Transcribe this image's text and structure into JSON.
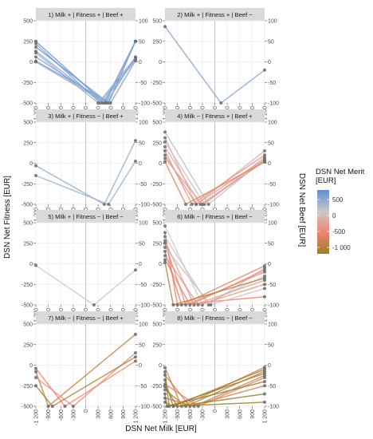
{
  "chart_data": {
    "type": "line",
    "layout": "faceted parallel-coordinates plot, 4 rows x 2 columns",
    "xlabel": "DSN Net Milk [EUR]",
    "ylabel_left": "DSN Net Fitness [EUR]",
    "ylabel_right": "DSN Net Beef [EUR]",
    "axes": {
      "milk": {
        "ticks": [
          "-1 200",
          "-900",
          "-600",
          "-300",
          "0",
          "300",
          "600",
          "900",
          "1 200"
        ],
        "range": [
          -1200,
          1200
        ]
      },
      "fitness": {
        "ticks": [
          "500",
          "250",
          "0",
          "-250",
          "-500"
        ],
        "range": [
          -500,
          500
        ]
      },
      "beef": {
        "ticks": [
          "100",
          "50",
          "0",
          "-50",
          "-100"
        ],
        "range": [
          -100,
          100
        ]
      }
    },
    "grid": true,
    "color_scale": {
      "variable": "DSN Net Merit [EUR]",
      "title": "DSN Net Merit\n[EUR]",
      "labels": [
        "500",
        "0",
        "-500",
        "-1 000"
      ],
      "values": [
        500,
        0,
        -500,
        -1000
      ],
      "range": [
        -1200,
        800
      ],
      "colors": [
        "#5f8ed1",
        "#c9c9c9",
        "#f0836e",
        "#9a7d2a"
      ],
      "legend_position": "right"
    },
    "panels": [
      {
        "title": "1) Milk + | Fitness + | Beef +",
        "animals": [
          {
            "fitness": 250,
            "milk": 450,
            "beef": 50
          },
          {
            "fitness": 220,
            "milk": 350,
            "beef": 10
          },
          {
            "fitness": 180,
            "milk": 550,
            "beef": 50
          },
          {
            "fitness": 130,
            "milk": 400,
            "beef": 5
          },
          {
            "fitness": 110,
            "milk": 300,
            "beef": 10
          },
          {
            "fitness": 60,
            "milk": 500,
            "beef": 12
          },
          {
            "fitness": 10,
            "milk": 600,
            "beef": 3
          },
          {
            "fitness": 0,
            "milk": 480,
            "beef": 50
          }
        ]
      },
      {
        "title": "2) Milk + | Fitness + | Beef −",
        "animals": [
          {
            "fitness": 430,
            "milk": 150,
            "beef": -20
          }
        ]
      },
      {
        "title": "3) Milk + | Fitness − | Beef +",
        "animals": [
          {
            "fitness": -30,
            "milk": 450,
            "beef": 55
          },
          {
            "fitness": -150,
            "milk": 550,
            "beef": 5
          }
        ]
      },
      {
        "title": "4) Milk − | Fitness + | Beef +",
        "animals": [
          {
            "fitness": 380,
            "milk": -150,
            "beef": 10
          },
          {
            "fitness": 310,
            "milk": -450,
            "beef": 30
          },
          {
            "fitness": 260,
            "milk": -250,
            "beef": 15
          },
          {
            "fitness": 200,
            "milk": -350,
            "beef": 5
          },
          {
            "fitness": 150,
            "milk": -550,
            "beef": 20
          },
          {
            "fitness": 100,
            "milk": -450,
            "beef": 10
          },
          {
            "fitness": 60,
            "milk": -300,
            "beef": 5
          },
          {
            "fitness": 20,
            "milk": -700,
            "beef": 3
          }
        ]
      },
      {
        "title": "5) Milk + | Fitness − | Beef −",
        "animals": [
          {
            "fitness": -20,
            "milk": 200,
            "beef": -15
          }
        ]
      },
      {
        "title": "6) Milk − | Fitness + | Beef −",
        "animals": [
          {
            "fitness": 460,
            "milk": -300,
            "beef": -30
          },
          {
            "fitness": 380,
            "milk": -900,
            "beef": -80
          },
          {
            "fitness": 330,
            "milk": -150,
            "beef": -10
          },
          {
            "fitness": 280,
            "milk": -500,
            "beef": -40
          },
          {
            "fitness": 250,
            "milk": -700,
            "beef": -20
          },
          {
            "fitness": 200,
            "milk": -100,
            "beef": -60
          },
          {
            "fitness": 150,
            "milk": -800,
            "beef": -5
          },
          {
            "fitness": 100,
            "milk": -400,
            "beef": -50
          },
          {
            "fitness": 50,
            "milk": -600,
            "beef": -15
          },
          {
            "fitness": 20,
            "milk": -1000,
            "beef": -35
          }
        ]
      },
      {
        "title": "7) Milk − | Fitness − | Beef +",
        "animals": [
          {
            "fitness": -40,
            "milk": -500,
            "beef": 10
          },
          {
            "fitness": -80,
            "milk": -900,
            "beef": 75
          },
          {
            "fitness": -150,
            "milk": -300,
            "beef": 30
          },
          {
            "fitness": -250,
            "milk": -800,
            "beef": 20
          }
        ]
      },
      {
        "title": "8) Milk − | Fitness − | Beef −",
        "animals": [
          {
            "fitness": -30,
            "milk": -800,
            "beef": -5
          },
          {
            "fitness": -80,
            "milk": -1100,
            "beef": -20
          },
          {
            "fitness": -120,
            "milk": -600,
            "beef": -50
          },
          {
            "fitness": -180,
            "milk": -1000,
            "beef": -10
          },
          {
            "fitness": -230,
            "milk": -400,
            "beef": -30
          },
          {
            "fitness": -260,
            "milk": -900,
            "beef": -70
          },
          {
            "fitness": -300,
            "milk": -700,
            "beef": -15
          },
          {
            "fitness": -350,
            "milk": -1150,
            "beef": -40
          },
          {
            "fitness": -400,
            "milk": -500,
            "beef": -25
          },
          {
            "fitness": -450,
            "milk": -1000,
            "beef": -90
          }
        ]
      }
    ]
  }
}
